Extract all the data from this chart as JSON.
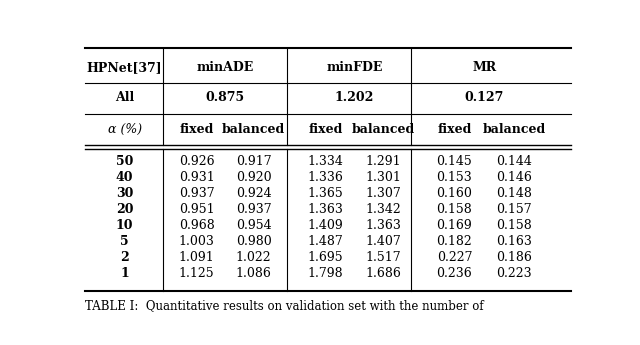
{
  "header_row1": [
    "HPNet[37]",
    "minADE",
    "minFDE",
    "MR"
  ],
  "header_row2": [
    "All",
    "0.875",
    "1.202",
    "0.127"
  ],
  "header_row3": [
    "α (%)",
    "fixed",
    "balanced",
    "fixed",
    "balanced",
    "fixed",
    "balanced"
  ],
  "data_rows": [
    [
      "50",
      "0.926",
      "0.917",
      "1.334",
      "1.291",
      "0.145",
      "0.144"
    ],
    [
      "40",
      "0.931",
      "0.920",
      "1.336",
      "1.301",
      "0.153",
      "0.146"
    ],
    [
      "30",
      "0.937",
      "0.924",
      "1.365",
      "1.307",
      "0.160",
      "0.148"
    ],
    [
      "20",
      "0.951",
      "0.937",
      "1.363",
      "1.342",
      "0.158",
      "0.157"
    ],
    [
      "10",
      "0.968",
      "0.954",
      "1.409",
      "1.363",
      "0.169",
      "0.158"
    ],
    [
      "5",
      "1.003",
      "0.980",
      "1.487",
      "1.407",
      "0.182",
      "0.163"
    ],
    [
      "2",
      "1.091",
      "1.022",
      "1.695",
      "1.517",
      "0.227",
      "0.186"
    ],
    [
      "1",
      "1.125",
      "1.086",
      "1.798",
      "1.686",
      "0.236",
      "0.223"
    ]
  ],
  "bg_color": "#ffffff",
  "text_color": "#000000",
  "line_color": "#000000",
  "font_size": 9,
  "caption": "TABLE I:  Quantitative results on validation set with the number of"
}
